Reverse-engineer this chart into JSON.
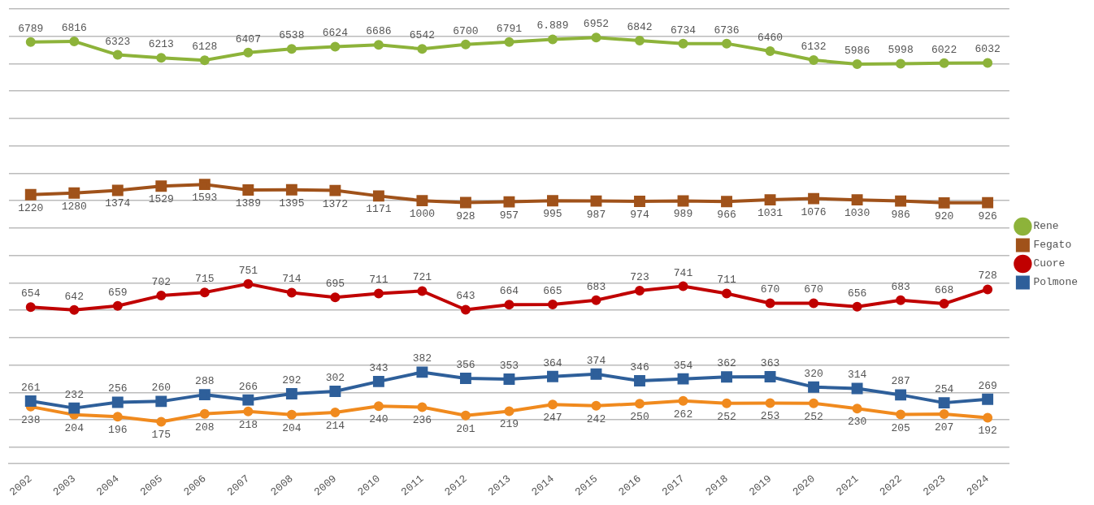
{
  "chart_data": {
    "type": "line",
    "categories": [
      "2002",
      "2003",
      "2004",
      "2005",
      "2006",
      "2007",
      "2008",
      "2009",
      "2010",
      "2011",
      "2012",
      "2013",
      "2014",
      "2015",
      "2016",
      "2017",
      "2018",
      "2019",
      "2020",
      "2021",
      "2022",
      "2023",
      "2024"
    ],
    "ylim": [
      -8600,
      8000
    ],
    "yticks": [
      {
        "value": -8000,
        "label": null
      },
      {
        "value": -7000,
        "label": null
      },
      {
        "value": -6000,
        "label": null
      },
      {
        "value": -5000,
        "label": null
      },
      {
        "value": -4000,
        "label": null
      },
      {
        "value": -3000,
        "label": null
      },
      {
        "value": -2000,
        "label": null
      },
      {
        "value": -1000,
        "label": null
      },
      {
        "value": 0,
        "label": null
      },
      {
        "value": 1000,
        "label": null
      },
      {
        "value": 2000,
        "label": null
      },
      {
        "value": 3000,
        "label": null
      },
      {
        "value": 4000,
        "label": null
      },
      {
        "value": 5000,
        "label": null
      },
      {
        "value": 6000,
        "label": null
      },
      {
        "value": 7000,
        "label": null
      },
      {
        "value": 8000,
        "label": null
      }
    ],
    "y2lim": [
      0,
      1900
    ],
    "grid": "y",
    "legend": "right",
    "tick_labels": "x",
    "data_labels": true,
    "series": [
      {
        "name": "Rene",
        "color": "#8db33a",
        "marker": "circle",
        "values": [
          6789,
          6816,
          6323,
          6213,
          6128,
          6407,
          6538,
          6624,
          6686,
          6542,
          6700,
          6791,
          6889,
          6952,
          6842,
          6734,
          6736,
          6460,
          6132,
          5986,
          5998,
          6022,
          6032
        ],
        "value_labels": [
          "6789",
          "6816",
          "6323",
          "6213",
          "6128",
          "6407",
          "6538",
          "6624",
          "6686",
          "6542",
          "6700",
          "6791",
          "6.889",
          "6952",
          "6842",
          "6734",
          "6736",
          "6460",
          "6132",
          "5986",
          "5998",
          "6022",
          "6032"
        ]
      },
      {
        "name": "Fegato",
        "color": "#a0521a",
        "marker": "square",
        "values": [
          1220,
          1280,
          1374,
          1529,
          1593,
          1389,
          1395,
          1372,
          1171,
          1000,
          928,
          957,
          995,
          987,
          974,
          989,
          966,
          1031,
          1076,
          1030,
          986,
          920,
          926
        ]
      },
      {
        "name": "Cuore",
        "color": "#c00000",
        "marker": "circle",
        "axis": "y2",
        "values": [
          654,
          642,
          659,
          702,
          715,
          751,
          714,
          695,
          711,
          721,
          643,
          664,
          665,
          683,
          723,
          741,
          711,
          670,
          670,
          656,
          683,
          668,
          728
        ]
      },
      {
        "name": "Polmone",
        "color": "#2e5f9a",
        "marker": "square",
        "axis": "y2",
        "values": [
          261,
          232,
          256,
          260,
          288,
          266,
          292,
          302,
          343,
          382,
          356,
          353,
          364,
          374,
          346,
          354,
          362,
          363,
          320,
          314,
          287,
          254,
          269
        ]
      },
      {
        "color": "#f08a1e",
        "marker": "circle",
        "axis": "y2",
        "values": [
          238,
          204,
          196,
          175,
          208,
          218,
          204,
          214,
          240,
          236,
          201,
          219,
          247,
          242,
          250,
          262,
          252,
          253,
          252,
          230,
          205,
          207,
          192
        ]
      }
    ]
  }
}
